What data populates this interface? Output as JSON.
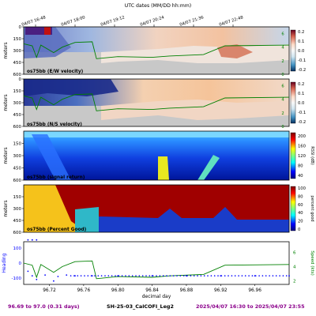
{
  "chart_data": [
    {
      "type": "heatmap",
      "panel_label": "os75bb (E/W velocity)",
      "ylabel": "meters",
      "yticks": [
        "0",
        "150",
        "300",
        "450",
        "600"
      ],
      "ylim": [
        600,
        0
      ],
      "colorbar_ticks": [
        "0.2",
        "0.1",
        "0.0",
        "-0.1",
        "-0.2"
      ],
      "right_axis_ticks": [
        "6",
        "4",
        "2",
        "0"
      ],
      "right_axis_label": "knots",
      "ship_speed_profile": [
        [
          96.69,
          4.5
        ],
        [
          96.7,
          4.2
        ],
        [
          96.705,
          2.5
        ],
        [
          96.71,
          4.3
        ],
        [
          96.725,
          3.2
        ],
        [
          96.735,
          4.0
        ],
        [
          96.75,
          4.7
        ],
        [
          96.77,
          4.8
        ],
        [
          96.775,
          2.3
        ],
        [
          96.8,
          2.6
        ],
        [
          96.84,
          2.5
        ],
        [
          96.86,
          2.7
        ],
        [
          96.9,
          2.9
        ],
        [
          96.925,
          4.2
        ],
        [
          97.0,
          4.3
        ]
      ]
    },
    {
      "type": "heatmap",
      "panel_label": "os75bb (N/S velocity)",
      "ylabel": "meters",
      "yticks": [
        "0",
        "150",
        "300",
        "450",
        "600"
      ],
      "ylim": [
        600,
        0
      ],
      "colorbar_ticks": [
        "0.2",
        "0.1",
        "0.0",
        "-0.1",
        "-0.2"
      ],
      "right_axis_ticks": [
        "6",
        "4",
        "2",
        "0"
      ],
      "right_axis_label": "knots"
    },
    {
      "type": "heatmap",
      "panel_label": "os75bb (signal return)",
      "ylabel": "meters",
      "yticks": [
        "150",
        "300",
        "450",
        "600"
      ],
      "ylim": [
        600,
        0
      ],
      "colorbar_ticks": [
        "200",
        "160",
        "120",
        "80",
        "40"
      ],
      "colorbar_label": "RSSI (dB)"
    },
    {
      "type": "heatmap",
      "panel_label": "os75bb (Percent Good)",
      "ylabel": "meters",
      "yticks": [
        "150",
        "300",
        "450",
        "600"
      ],
      "ylim": [
        600,
        0
      ],
      "colorbar_ticks": [
        "100",
        "80",
        "60",
        "40",
        "20",
        "0"
      ],
      "colorbar_label": "percent good"
    },
    {
      "type": "line",
      "left_label": "Heading",
      "left_ticks": [
        "100",
        "0",
        "-100"
      ],
      "right_label": "Speed (kts)",
      "right_ticks": [
        "6",
        "4",
        "2"
      ],
      "xlabel": "decimal day",
      "xticks": [
        "96.72",
        "96.76",
        "96.80",
        "96.84",
        "96.88",
        "96.92",
        "96.96"
      ],
      "xlim": [
        96.69,
        97.0
      ],
      "speed_series": [
        [
          96.69,
          4.5
        ],
        [
          96.7,
          4.2
        ],
        [
          96.705,
          2.5
        ],
        [
          96.71,
          4.3
        ],
        [
          96.725,
          3.2
        ],
        [
          96.735,
          4.0
        ],
        [
          96.75,
          4.7
        ],
        [
          96.77,
          4.8
        ],
        [
          96.775,
          2.3
        ],
        [
          96.8,
          2.6
        ],
        [
          96.84,
          2.5
        ],
        [
          96.86,
          2.7
        ],
        [
          96.9,
          2.9
        ],
        [
          96.925,
          4.2
        ],
        [
          97.0,
          4.3
        ]
      ],
      "heading_series": [
        [
          96.695,
          155
        ],
        [
          96.7,
          155
        ],
        [
          96.705,
          155
        ],
        [
          96.695,
          -55
        ],
        [
          96.7,
          -85
        ],
        [
          96.705,
          -110
        ],
        [
          96.715,
          -80
        ],
        [
          96.725,
          -120
        ],
        [
          96.73,
          -90
        ],
        [
          96.74,
          -80
        ],
        [
          96.75,
          -85
        ],
        [
          96.77,
          -85
        ],
        [
          96.8,
          -85
        ],
        [
          96.84,
          -85
        ],
        [
          96.88,
          -85
        ],
        [
          96.92,
          -85
        ],
        [
          96.96,
          -85
        ],
        [
          97.0,
          -85
        ]
      ]
    }
  ],
  "top_axis": {
    "title": "UTC dates (MM/DD hh:mm)",
    "ticks": [
      "04/07 16:48",
      "04/07 18:00",
      "04/07 19:12",
      "04/07 20:24",
      "04/07 21:36",
      "04/07 22:48"
    ]
  },
  "footer": {
    "range": "96.69 to 97.0 (0.31 days)",
    "cruise": "SH-25-03_CalCOFI_Leg2",
    "time_range": "2025/04/07 16:30 to 2025/04/07 23:55"
  },
  "colors": {
    "footer_left": "#8b008b",
    "footer_right": "#8b008b",
    "speed_line": "#008000",
    "heading_dots": "#0000ff",
    "no_data": "#c8c8c8"
  }
}
